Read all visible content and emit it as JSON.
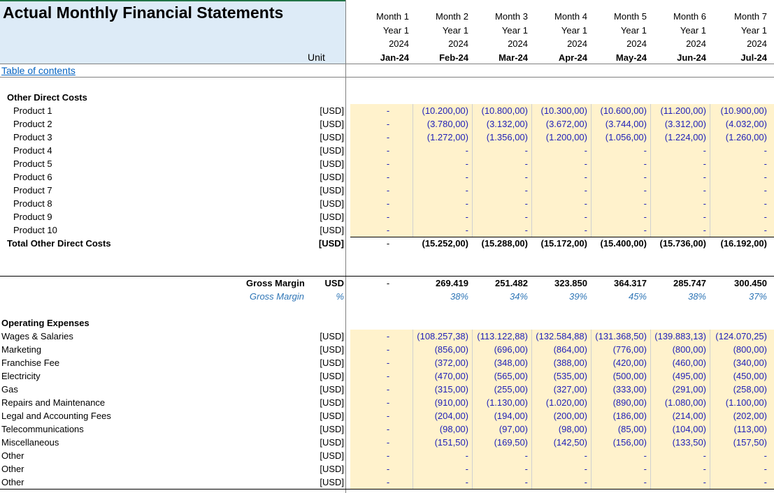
{
  "title": "Actual Monthly Financial Statements",
  "unit_header": "Unit",
  "toc_link": "Table of contents",
  "months": [
    {
      "month": "Month 1",
      "year": "Year 1",
      "yr": "2024",
      "date": "Jan-24"
    },
    {
      "month": "Month 2",
      "year": "Year 1",
      "yr": "2024",
      "date": "Feb-24"
    },
    {
      "month": "Month 3",
      "year": "Year 1",
      "yr": "2024",
      "date": "Mar-24"
    },
    {
      "month": "Month 4",
      "year": "Year 1",
      "yr": "2024",
      "date": "Apr-24"
    },
    {
      "month": "Month 5",
      "year": "Year 1",
      "yr": "2024",
      "date": "May-24"
    },
    {
      "month": "Month 6",
      "year": "Year 1",
      "yr": "2024",
      "date": "Jun-24"
    },
    {
      "month": "Month 7",
      "year": "Year 1",
      "yr": "2024",
      "date": "Jul-24"
    }
  ],
  "other_direct_costs": {
    "title": "Other Direct Costs",
    "rows": [
      {
        "label": "Product 1",
        "unit": "[USD]",
        "values": [
          "-",
          "(10.200,00)",
          "(10.800,00)",
          "(10.300,00)",
          "(10.600,00)",
          "(11.200,00)",
          "(10.900,00)"
        ]
      },
      {
        "label": "Product 2",
        "unit": "[USD]",
        "values": [
          "-",
          "(3.780,00)",
          "(3.132,00)",
          "(3.672,00)",
          "(3.744,00)",
          "(3.312,00)",
          "(4.032,00)"
        ]
      },
      {
        "label": "Product 3",
        "unit": "[USD]",
        "values": [
          "-",
          "(1.272,00)",
          "(1.356,00)",
          "(1.200,00)",
          "(1.056,00)",
          "(1.224,00)",
          "(1.260,00)"
        ]
      },
      {
        "label": "Product 4",
        "unit": "[USD]",
        "values": [
          "-",
          "-",
          "-",
          "-",
          "-",
          "-",
          "-"
        ]
      },
      {
        "label": "Product 5",
        "unit": "[USD]",
        "values": [
          "-",
          "-",
          "-",
          "-",
          "-",
          "-",
          "-"
        ]
      },
      {
        "label": "Product 6",
        "unit": "[USD]",
        "values": [
          "-",
          "-",
          "-",
          "-",
          "-",
          "-",
          "-"
        ]
      },
      {
        "label": "Product 7",
        "unit": "[USD]",
        "values": [
          "-",
          "-",
          "-",
          "-",
          "-",
          "-",
          "-"
        ]
      },
      {
        "label": "Product 8",
        "unit": "[USD]",
        "values": [
          "-",
          "-",
          "-",
          "-",
          "-",
          "-",
          "-"
        ]
      },
      {
        "label": "Product 9",
        "unit": "[USD]",
        "values": [
          "-",
          "-",
          "-",
          "-",
          "-",
          "-",
          "-"
        ]
      },
      {
        "label": "Product 10",
        "unit": "[USD]",
        "values": [
          "-",
          "-",
          "-",
          "-",
          "-",
          "-",
          "-"
        ]
      }
    ],
    "total": {
      "label": "Total Other Direct Costs",
      "unit": "[USD]",
      "values": [
        "-",
        "(15.252,00)",
        "(15.288,00)",
        "(15.172,00)",
        "(15.400,00)",
        "(15.736,00)",
        "(16.192,00)"
      ]
    }
  },
  "gross_margin": {
    "label": "Gross Margin",
    "unit": "USD",
    "values": [
      "-",
      "269.419",
      "251.482",
      "323.850",
      "364.317",
      "285.747",
      "300.450"
    ],
    "pct_label": "Gross Margin",
    "pct_unit": "%",
    "pct_values": [
      "",
      "38%",
      "34%",
      "39%",
      "45%",
      "38%",
      "37%"
    ]
  },
  "operating_expenses": {
    "title": "Operating Expenses",
    "rows": [
      {
        "label": "Wages & Salaries",
        "unit": "[USD]",
        "values": [
          "-",
          "(108.257,38)",
          "(113.122,88)",
          "(132.584,88)",
          "(131.368,50)",
          "(139.883,13)",
          "(124.070,25)"
        ]
      },
      {
        "label": "Marketing",
        "unit": "[USD]",
        "values": [
          "-",
          "(856,00)",
          "(696,00)",
          "(864,00)",
          "(776,00)",
          "(800,00)",
          "(800,00)"
        ]
      },
      {
        "label": "Franchise Fee",
        "unit": "[USD]",
        "values": [
          "-",
          "(372,00)",
          "(348,00)",
          "(388,00)",
          "(420,00)",
          "(460,00)",
          "(340,00)"
        ]
      },
      {
        "label": "Electricity",
        "unit": "[USD]",
        "values": [
          "-",
          "(470,00)",
          "(565,00)",
          "(535,00)",
          "(500,00)",
          "(495,00)",
          "(450,00)"
        ]
      },
      {
        "label": "Gas",
        "unit": "[USD]",
        "values": [
          "-",
          "(315,00)",
          "(255,00)",
          "(327,00)",
          "(333,00)",
          "(291,00)",
          "(258,00)"
        ]
      },
      {
        "label": "Repairs and Maintenance",
        "unit": "[USD]",
        "values": [
          "-",
          "(910,00)",
          "(1.130,00)",
          "(1.020,00)",
          "(890,00)",
          "(1.080,00)",
          "(1.100,00)"
        ]
      },
      {
        "label": "Legal and Accounting Fees",
        "unit": "[USD]",
        "values": [
          "-",
          "(204,00)",
          "(194,00)",
          "(200,00)",
          "(186,00)",
          "(214,00)",
          "(202,00)"
        ]
      },
      {
        "label": "Telecommunications",
        "unit": "[USD]",
        "values": [
          "-",
          "(98,00)",
          "(97,00)",
          "(98,00)",
          "(85,00)",
          "(104,00)",
          "(113,00)"
        ]
      },
      {
        "label": "Miscellaneous",
        "unit": "[USD]",
        "values": [
          "-",
          "(151,50)",
          "(169,50)",
          "(142,50)",
          "(156,00)",
          "(133,50)",
          "(157,50)"
        ]
      },
      {
        "label": "Other",
        "unit": "[USD]",
        "values": [
          "-",
          "-",
          "-",
          "-",
          "-",
          "-",
          "-"
        ]
      },
      {
        "label": "Other",
        "unit": "[USD]",
        "values": [
          "-",
          "-",
          "-",
          "-",
          "-",
          "-",
          "-"
        ]
      },
      {
        "label": "Other",
        "unit": "[USD]",
        "values": [
          "-",
          "-",
          "-",
          "-",
          "-",
          "-",
          "-"
        ]
      }
    ]
  },
  "colors": {
    "header_bg": "#ddebf7",
    "input_bg": "#fff2cc",
    "input_text": "#1f1fb8",
    "pct_text": "#2e75b6",
    "link": "#0563c1"
  }
}
